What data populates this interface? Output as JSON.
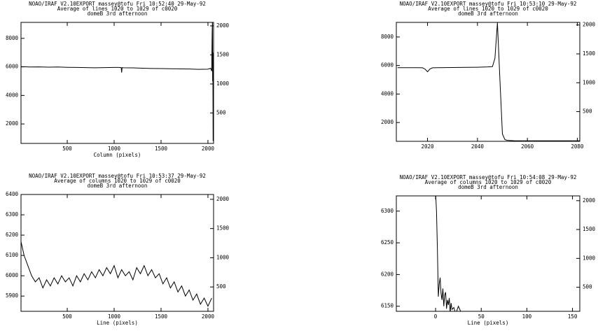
{
  "chart_data": [
    {
      "type": "line",
      "title_lines": [
        "NOAO/IRAF V2.10EXPORT massey@tofu Fri 10:52:40 29-May-92",
        "Average of lines 1020 to 1029 of c0020",
        "domeB 3rd afternoon"
      ],
      "x_label": "Column (pixels)",
      "x": [
        1,
        100,
        200,
        300,
        400,
        500,
        600,
        700,
        800,
        900,
        1000,
        1050,
        1075,
        1080,
        1085,
        1100,
        1200,
        1300,
        1400,
        1500,
        1600,
        1700,
        1800,
        1900,
        2000,
        2030,
        2040,
        2045,
        2048,
        2050,
        2052,
        2055
      ],
      "values": [
        6020,
        5990,
        6000,
        5980,
        5990,
        5970,
        5960,
        5950,
        5940,
        5950,
        5960,
        5960,
        5950,
        5600,
        5950,
        5940,
        5930,
        5910,
        5890,
        5880,
        5870,
        5860,
        5850,
        5830,
        5840,
        5900,
        5700,
        8500,
        9200,
        5000,
        7000,
        800
      ],
      "color": "#000000",
      "xlim": [
        7,
        2060
      ],
      "xticks": [
        500,
        1000,
        1500,
        2000
      ],
      "ylim": [
        634,
        9120
      ],
      "yticks": [
        2000,
        4000,
        6000,
        8000
      ],
      "y2lim": [
        -24,
        2060
      ],
      "y2ticks": [
        500,
        1000,
        1500,
        2000
      ]
    },
    {
      "type": "line",
      "title_lines": [
        "NOAO/IRAF V2.10EXPORT massey@tofu Fri 10:53:10 29-May-92",
        "Average of lines 1020 to 1029 of c0020",
        "domeB 3rd afternoon"
      ],
      "x_label": null,
      "x": [
        2008,
        2012,
        2016,
        2018,
        2019,
        2020,
        2021,
        2022,
        2024,
        2030,
        2036,
        2040,
        2044,
        2046,
        2047,
        2048,
        2049,
        2050,
        2051,
        2052,
        2055,
        2060,
        2070,
        2081
      ],
      "values": [
        5850,
        5850,
        5850,
        5840,
        5750,
        5560,
        5760,
        5840,
        5850,
        5860,
        5870,
        5880,
        5900,
        5920,
        6500,
        9000,
        5000,
        1200,
        800,
        750,
        720,
        720,
        720,
        720
      ],
      "color": "#000000",
      "xlim": [
        2007.5,
        2081
      ],
      "xticks": [
        2020,
        2040,
        2060,
        2080
      ],
      "ylim": [
        683,
        9024
      ],
      "yticks": [
        2000,
        4000,
        6000,
        8000
      ],
      "y2lim": [
        -14,
        2045
      ],
      "y2ticks": [
        500,
        1000,
        1500,
        2000
      ]
    },
    {
      "type": "line",
      "title_lines": [
        "NOAO/IRAF V2.10EXPORT massey@tofu Fri 10:53:37 29-May-92",
        "Average of columns 1020 to 1029 of c0020",
        "domeB 3rd afternoon"
      ],
      "x_label": "Line (pixels)",
      "x": [
        1,
        40,
        80,
        120,
        160,
        200,
        240,
        280,
        320,
        360,
        400,
        440,
        480,
        520,
        560,
        600,
        640,
        680,
        720,
        760,
        800,
        840,
        880,
        920,
        960,
        1000,
        1040,
        1080,
        1120,
        1160,
        1200,
        1240,
        1280,
        1320,
        1360,
        1400,
        1440,
        1480,
        1520,
        1560,
        1600,
        1640,
        1680,
        1720,
        1760,
        1800,
        1840,
        1880,
        1920,
        1960,
        2000,
        2040
      ],
      "values": [
        6180,
        6100,
        6050,
        6000,
        5970,
        5990,
        5940,
        5980,
        5950,
        5990,
        5960,
        6000,
        5970,
        5990,
        5950,
        6000,
        5970,
        6010,
        5980,
        6020,
        5990,
        6030,
        6000,
        6040,
        6010,
        6050,
        5990,
        6030,
        6000,
        6020,
        5980,
        6040,
        6010,
        6050,
        6000,
        6030,
        5990,
        6010,
        5960,
        5990,
        5940,
        5970,
        5920,
        5950,
        5900,
        5930,
        5880,
        5910,
        5860,
        5890,
        5850,
        5890
      ],
      "color": "#000000",
      "xlim": [
        7,
        2060
      ],
      "xticks": [
        500,
        1000,
        1500,
        2000
      ],
      "ylim": [
        5825,
        6400
      ],
      "yticks": [
        5900,
        6000,
        6100,
        6200,
        6300,
        6400
      ],
      "y2lim": [
        83,
        2083
      ],
      "y2ticks": [
        500,
        1000,
        1500,
        2000
      ]
    },
    {
      "type": "line",
      "title_lines": [
        "NOAO/IRAF V2.10EXPORT massey@tofu Fri 10:54:08 29-May-92",
        "Average of columns 1020 to 1029 of c0020",
        "domeB 3rd afternoon"
      ],
      "x_label": "Line (pixels)",
      "x": [
        0,
        1,
        2,
        3,
        4,
        5,
        6,
        7,
        8,
        9,
        10,
        11,
        12,
        13,
        14,
        15,
        16,
        17,
        18,
        20,
        22,
        25,
        28,
        30,
        32
      ],
      "values": [
        6330,
        6300,
        6240,
        6165,
        6185,
        6195,
        6170,
        6160,
        6178,
        6150,
        6168,
        6172,
        6146,
        6160,
        6152,
        6163,
        6140,
        6155,
        6145,
        6148,
        6138,
        6150,
        6140,
        6135,
        6120
      ],
      "color": "#000000",
      "xlim": [
        -43,
        158
      ],
      "xticks": [
        0,
        50,
        100,
        150
      ],
      "ylim": [
        6142,
        6324
      ],
      "yticks": [
        6150,
        6200,
        6250,
        6300
      ],
      "y2lim": [
        83,
        2083
      ],
      "y2ticks": [
        500,
        1000,
        1500,
        2000
      ]
    }
  ]
}
